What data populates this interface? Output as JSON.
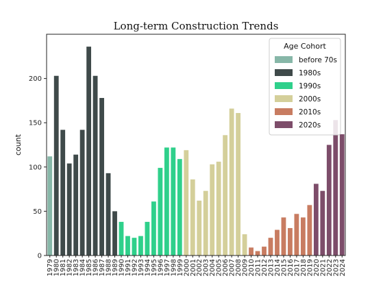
{
  "chart_data": {
    "type": "bar",
    "title": "Long-term Construction Trends",
    "ylabel": "count",
    "xlabel": "",
    "ylim": [
      0,
      250
    ],
    "yticks": [
      0,
      50,
      100,
      150,
      200
    ],
    "grid": false,
    "legend_position": "top-right",
    "legend_title": "Age Cohort",
    "series": [
      {
        "name": "before 70s",
        "color": "#87b7a8"
      },
      {
        "name": "1980s",
        "color": "#3f4a4a"
      },
      {
        "name": "1990s",
        "color": "#2fd08b"
      },
      {
        "name": "2000s",
        "color": "#d4cf9a"
      },
      {
        "name": "2010s",
        "color": "#c87c61"
      },
      {
        "name": "2020s",
        "color": "#7d4d6a"
      }
    ],
    "categories": [
      "1979",
      "1980",
      "1981",
      "1982",
      "1983",
      "1984",
      "1985",
      "1986",
      "1987",
      "1988",
      "1989",
      "1990",
      "1991",
      "1992",
      "1993",
      "1994",
      "1995",
      "1996",
      "1997",
      "1998",
      "1999",
      "2000",
      "2001",
      "2002",
      "2003",
      "2004",
      "2005",
      "2006",
      "2007",
      "2008",
      "2009",
      "2010",
      "2011",
      "2012",
      "2013",
      "2014",
      "2015",
      "2016",
      "2017",
      "2018",
      "2019",
      "2020",
      "2021",
      "2022",
      "2023",
      "2024"
    ],
    "values": [
      112,
      203,
      142,
      104,
      114,
      142,
      236,
      203,
      178,
      93,
      50,
      38,
      22,
      20,
      22,
      38,
      61,
      99,
      122,
      122,
      109,
      119,
      86,
      62,
      73,
      103,
      106,
      136,
      166,
      161,
      24,
      9,
      5,
      10,
      20,
      29,
      43,
      31,
      47,
      43,
      57,
      81,
      73,
      125,
      153,
      137
    ],
    "cohort": [
      0,
      1,
      1,
      1,
      1,
      1,
      1,
      1,
      1,
      1,
      1,
      2,
      2,
      2,
      2,
      2,
      2,
      2,
      2,
      2,
      2,
      3,
      3,
      3,
      3,
      3,
      3,
      3,
      3,
      3,
      3,
      4,
      4,
      4,
      4,
      4,
      4,
      4,
      4,
      4,
      4,
      5,
      5,
      5,
      5,
      5
    ]
  }
}
